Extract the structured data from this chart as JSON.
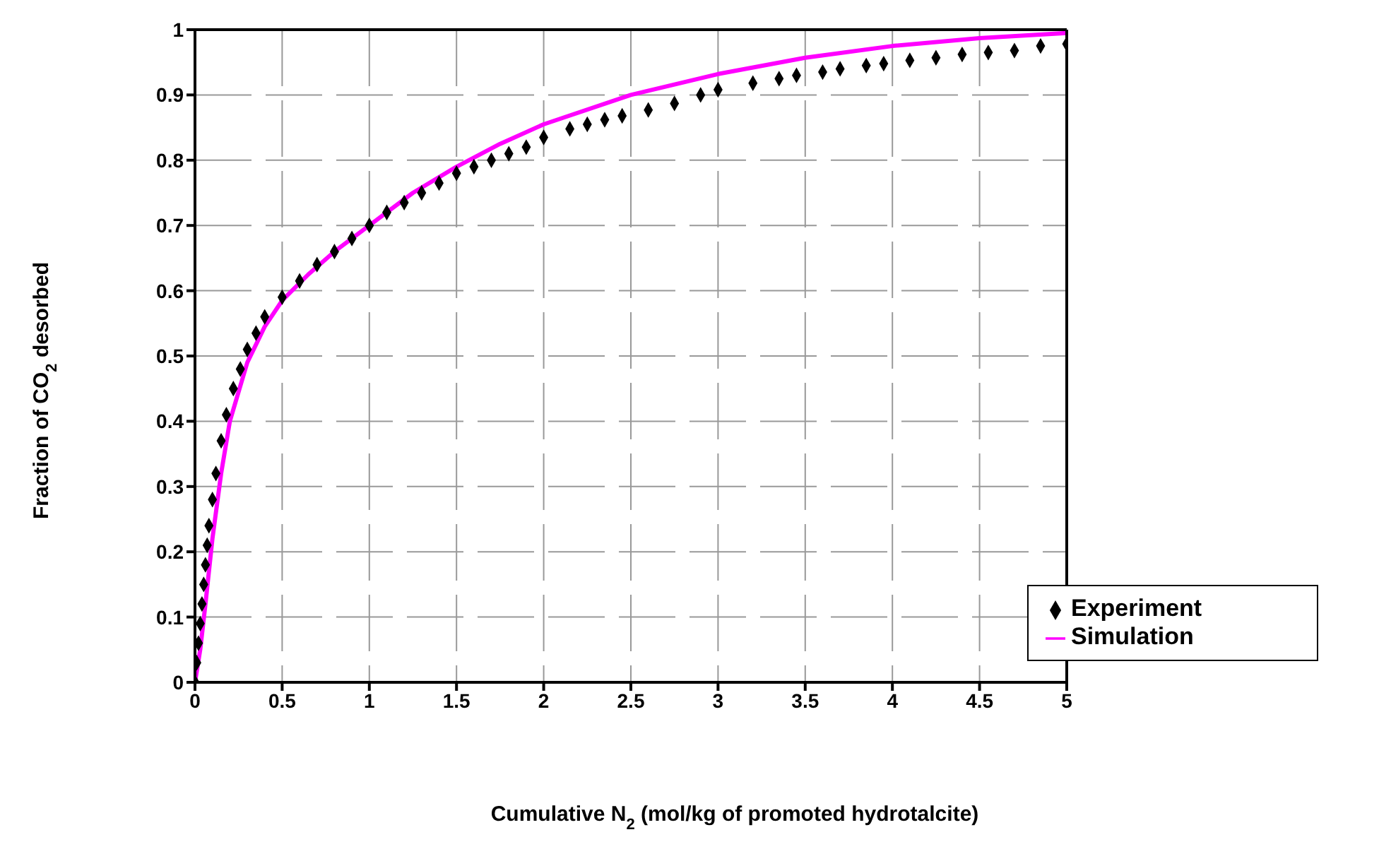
{
  "chart_data": {
    "type": "scatter",
    "xlabel": "Cumulative N$_{2}$ (mol/kg of promoted hydrotalcite)",
    "ylabel": "Fraction of CO$_{2}$ desorbed",
    "xlim": [
      0,
      5
    ],
    "xticks": [
      0,
      0.5,
      1,
      1.5,
      2,
      2.5,
      3,
      3.5,
      4,
      4.5,
      5
    ],
    "ylim": [
      0,
      1
    ],
    "yticks": [
      0,
      0.1,
      0.2,
      0.3,
      0.4,
      0.5,
      0.6,
      0.7,
      0.8,
      0.9,
      1
    ],
    "grid": true,
    "legend": "bottom right",
    "series": [
      {
        "name": "Experiment",
        "marker": "diamond",
        "color": "#000000",
        "x": [
          0,
          0.01,
          0.02,
          0.03,
          0.04,
          0.05,
          0.06,
          0.07,
          0.08,
          0.1,
          0.12,
          0.15,
          0.18,
          0.22,
          0.26,
          0.3,
          0.35,
          0.4,
          0.5,
          0.6,
          0.7,
          0.8,
          0.9,
          1.0,
          1.1,
          1.2,
          1.3,
          1.4,
          1.5,
          1.6,
          1.7,
          1.8,
          1.9,
          2.0,
          2.15,
          2.25,
          2.35,
          2.45,
          2.6,
          2.75,
          2.9,
          3.0,
          3.2,
          3.35,
          3.45,
          3.6,
          3.7,
          3.85,
          3.95,
          4.1,
          4.25,
          4.4,
          4.55,
          4.7,
          4.85,
          5.0
        ],
        "values": [
          0,
          0.03,
          0.06,
          0.09,
          0.12,
          0.15,
          0.18,
          0.21,
          0.24,
          0.28,
          0.32,
          0.37,
          0.41,
          0.45,
          0.48,
          0.51,
          0.535,
          0.56,
          0.59,
          0.615,
          0.64,
          0.66,
          0.68,
          0.7,
          0.72,
          0.735,
          0.75,
          0.765,
          0.78,
          0.79,
          0.8,
          0.81,
          0.82,
          0.835,
          0.848,
          0.855,
          0.862,
          0.868,
          0.877,
          0.887,
          0.9,
          0.908,
          0.918,
          0.925,
          0.93,
          0.935,
          0.94,
          0.945,
          0.948,
          0.953,
          0.957,
          0.962,
          0.965,
          0.968,
          0.975,
          0.978
        ]
      },
      {
        "name": "Simulation",
        "type": "line",
        "marker": "none",
        "line_style": "solid",
        "color": "#ff00ff",
        "x": [
          0,
          0.03,
          0.06,
          0.1,
          0.15,
          0.2,
          0.3,
          0.4,
          0.5,
          0.65,
          0.8,
          1.0,
          1.25,
          1.5,
          1.75,
          2.0,
          2.5,
          3.0,
          3.5,
          4.0,
          4.5,
          5.0
        ],
        "values": [
          0,
          0.05,
          0.12,
          0.22,
          0.32,
          0.4,
          0.49,
          0.545,
          0.585,
          0.625,
          0.66,
          0.7,
          0.75,
          0.79,
          0.825,
          0.855,
          0.9,
          0.932,
          0.957,
          0.975,
          0.987,
          0.995
        ]
      }
    ]
  }
}
